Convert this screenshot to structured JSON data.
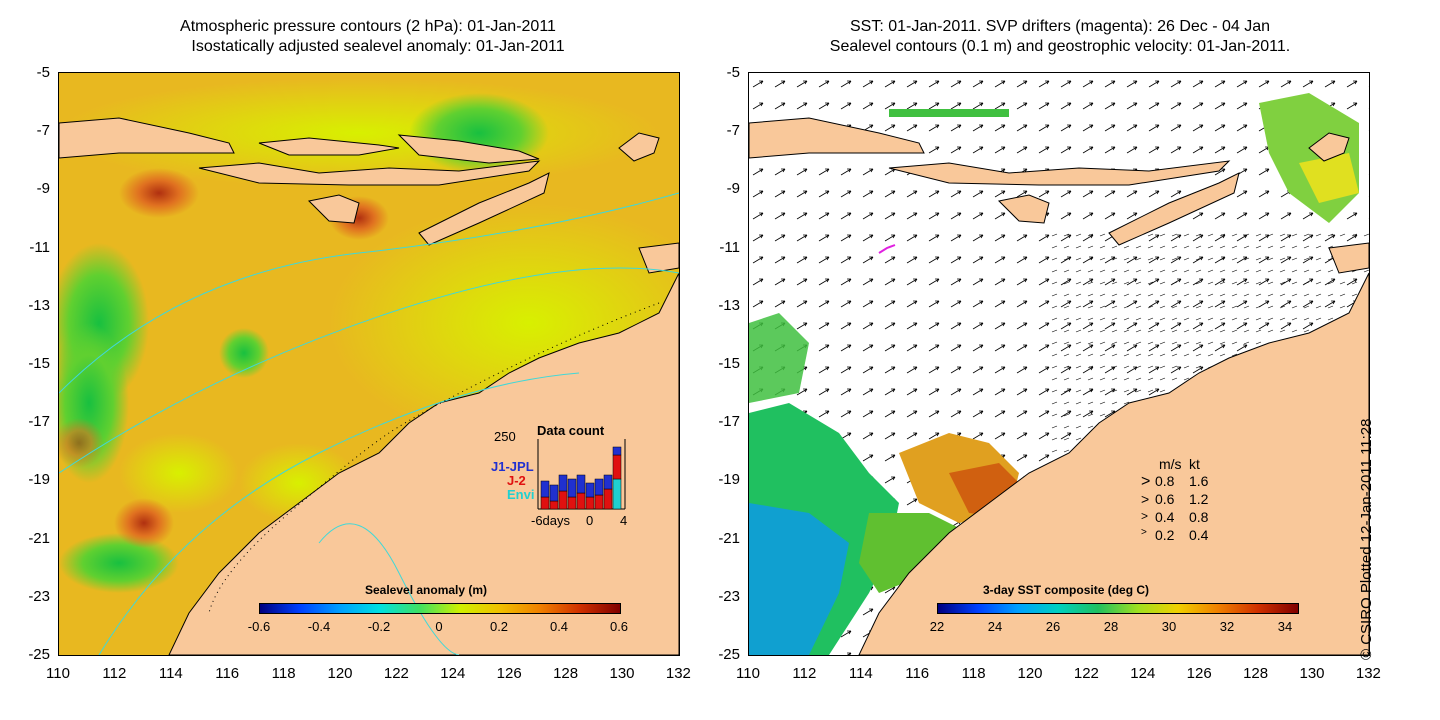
{
  "left_panel": {
    "title_line1": "Atmospheric pressure contours (2 hPa): 01-Jan-2011",
    "title_line2": "Isostatically adjusted sealevel anomaly: 01-Jan-2011",
    "colorbar": {
      "label": "Sealevel anomaly (m)",
      "ticks": [
        "-0.6",
        "-0.4",
        "-0.2",
        "0",
        "0.2",
        "0.4",
        "0.6"
      ]
    },
    "data_count": {
      "title": "Data count",
      "ymax_label": "250",
      "series": [
        {
          "name": "J1-JPL",
          "color": "#2030d0"
        },
        {
          "name": "J-2",
          "color": "#e01010"
        },
        {
          "name": "Envi",
          "color": "#20d0d0"
        }
      ],
      "x_labels": [
        "-6days",
        "0",
        "4"
      ]
    }
  },
  "right_panel": {
    "title_line1": "SST: 01-Jan-2011. SVP drifters (magenta): 26 Dec - 04 Jan",
    "title_line2": "Sealevel contours (0.1 m) and geostrophic velocity: 01-Jan-2011.",
    "colorbar": {
      "label": "3-day SST composite (deg C)",
      "ticks": [
        "22",
        "24",
        "26",
        "28",
        "30",
        "32",
        "34"
      ]
    },
    "velocity_legend": {
      "header_ms": "m/s",
      "header_kt": "kt",
      "rows": [
        {
          "ms": "0.8",
          "kt": "1.6"
        },
        {
          "ms": "0.6",
          "kt": "1.2"
        },
        {
          "ms": "0.4",
          "kt": "0.8"
        },
        {
          "ms": "0.2",
          "kt": "0.4"
        }
      ]
    }
  },
  "axes": {
    "y_ticks": [
      "-5",
      "-7",
      "-9",
      "-11",
      "-13",
      "-15",
      "-17",
      "-19",
      "-21",
      "-23",
      "-25"
    ],
    "x_ticks": [
      "110",
      "112",
      "114",
      "116",
      "118",
      "120",
      "122",
      "124",
      "126",
      "128",
      "130",
      "132"
    ]
  },
  "credit": "© CSIRO Plotted 12-Jan-2011 11:28",
  "colors": {
    "land": "#f9c89a",
    "ocean_anomaly_base": "#e8c020",
    "drifter": "#e020e0"
  }
}
